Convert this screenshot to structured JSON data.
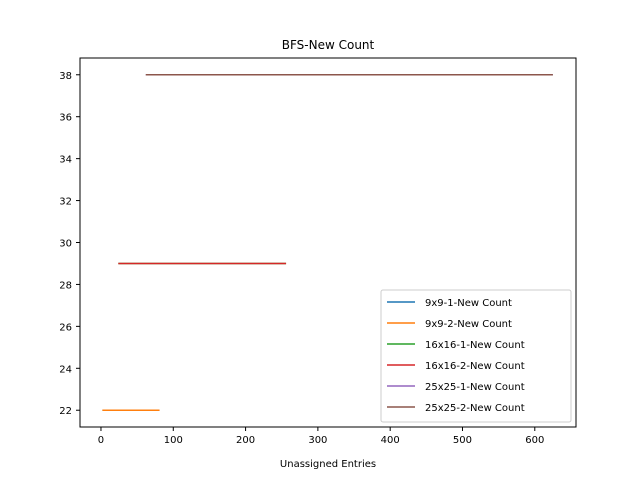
{
  "chart_data": {
    "type": "line",
    "title": "BFS-New Count",
    "xlabel": "Unassigned Entries",
    "ylabel": "",
    "xlim": [
      -29,
      657
    ],
    "ylim": [
      21.2,
      38.8
    ],
    "xticks": [
      0,
      100,
      200,
      300,
      400,
      500,
      600
    ],
    "yticks": [
      22,
      24,
      26,
      28,
      30,
      32,
      34,
      36,
      38
    ],
    "grid": false,
    "legend_placement": "lower-right",
    "series": [
      {
        "name": "9x9-1-New Count",
        "color": "#1f77b4",
        "x": [
          2,
          81
        ],
        "y": [
          22,
          22
        ]
      },
      {
        "name": "9x9-2-New Count",
        "color": "#ff7f0e",
        "x": [
          2,
          81
        ],
        "y": [
          22,
          22
        ]
      },
      {
        "name": "16x16-1-New Count",
        "color": "#2ca02c",
        "x": [
          24,
          256
        ],
        "y": [
          29,
          29
        ]
      },
      {
        "name": "16x16-2-New Count",
        "color": "#d62728",
        "x": [
          24,
          256
        ],
        "y": [
          29,
          29
        ]
      },
      {
        "name": "25x25-1-New Count",
        "color": "#9467bd",
        "x": [
          62,
          625
        ],
        "y": [
          38,
          38
        ]
      },
      {
        "name": "25x25-2-New Count",
        "color": "#8c564b",
        "x": [
          62,
          625
        ],
        "y": [
          38,
          38
        ]
      }
    ]
  }
}
